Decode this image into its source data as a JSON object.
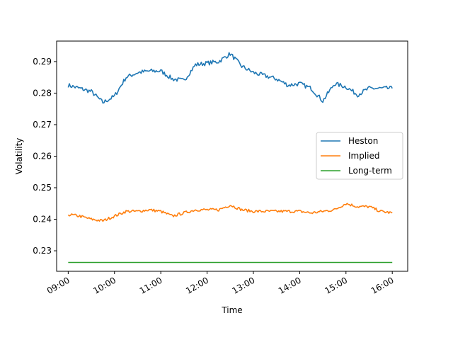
{
  "chart_data": {
    "type": "line",
    "title": "",
    "xlabel": "Time",
    "ylabel": "Volatility",
    "x_ticks": [
      "09:00",
      "10:00",
      "11:00",
      "12:00",
      "13:00",
      "14:00",
      "15:00",
      "16:00"
    ],
    "y_ticks": [
      0.23,
      0.24,
      0.25,
      0.26,
      0.27,
      0.28,
      0.29
    ],
    "xlim": [
      "08:45",
      "16:20"
    ],
    "ylim": [
      0.2235,
      0.2965
    ],
    "grid": false,
    "legend": "center-right",
    "x": [
      "09:00",
      "09:15",
      "09:30",
      "09:45",
      "10:00",
      "10:15",
      "10:30",
      "10:45",
      "11:00",
      "11:15",
      "11:30",
      "11:45",
      "12:00",
      "12:15",
      "12:30",
      "12:45",
      "13:00",
      "13:15",
      "13:30",
      "13:45",
      "14:00",
      "14:15",
      "14:30",
      "14:45",
      "15:00",
      "15:15",
      "15:30",
      "15:45",
      "16:00"
    ],
    "series": [
      {
        "name": "Heston",
        "color": "#1f77b4",
        "values": [
          0.2825,
          0.2815,
          0.2805,
          0.277,
          0.279,
          0.285,
          0.2865,
          0.287,
          0.287,
          0.2845,
          0.284,
          0.289,
          0.2895,
          0.29,
          0.2925,
          0.2885,
          0.2865,
          0.2855,
          0.2845,
          0.2825,
          0.283,
          0.2815,
          0.2775,
          0.283,
          0.282,
          0.2795,
          0.2815,
          0.2815,
          0.2815
        ]
      },
      {
        "name": "Implied",
        "color": "#ff7f0e",
        "values": [
          0.2415,
          0.241,
          0.24,
          0.2395,
          0.241,
          0.2425,
          0.2425,
          0.243,
          0.2425,
          0.241,
          0.242,
          0.243,
          0.243,
          0.243,
          0.2445,
          0.243,
          0.2425,
          0.2425,
          0.2425,
          0.2425,
          0.2425,
          0.242,
          0.2425,
          0.243,
          0.245,
          0.244,
          0.244,
          0.2425,
          0.242
        ]
      },
      {
        "name": "Long-term",
        "color": "#2ca02c",
        "values": [
          0.2263,
          0.2263,
          0.2263,
          0.2263,
          0.2263,
          0.2263,
          0.2263,
          0.2263,
          0.2263,
          0.2263,
          0.2263,
          0.2263,
          0.2263,
          0.2263,
          0.2263,
          0.2263,
          0.2263,
          0.2263,
          0.2263,
          0.2263,
          0.2263,
          0.2263,
          0.2263,
          0.2263,
          0.2263,
          0.2263,
          0.2263,
          0.2263,
          0.2263
        ]
      }
    ]
  }
}
